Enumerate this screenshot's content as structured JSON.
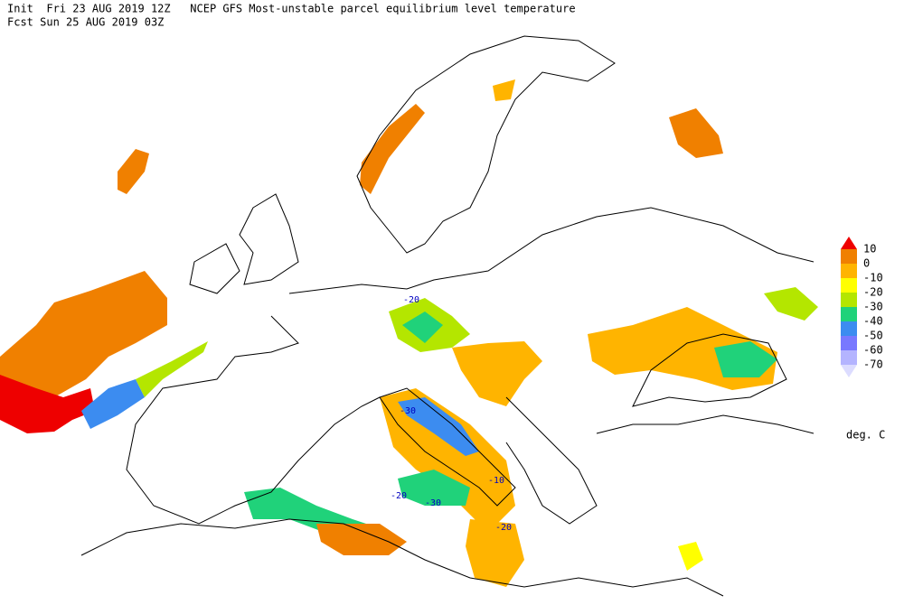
{
  "header": {
    "line1": "Init  Fri 23 AUG 2019 12Z   NCEP GFS Most-unstable parcel equilibrium level temperature",
    "line2": "Fcst Sun 25 AUG 2019 03Z"
  },
  "legend": {
    "levels": [
      10,
      0,
      -10,
      -20,
      -30,
      -40,
      -50,
      -60,
      -70
    ],
    "colors": [
      "#ee0000",
      "#f08000",
      "#ffb400",
      "#ffff00",
      "#b4e600",
      "#20d27a",
      "#3c8cf0",
      "#7878ff",
      "#b4b4ff",
      "#dcdcff"
    ],
    "unit": "deg. C"
  },
  "contour_labels": [
    -20,
    -30,
    -20,
    -30,
    -10,
    -20
  ]
}
